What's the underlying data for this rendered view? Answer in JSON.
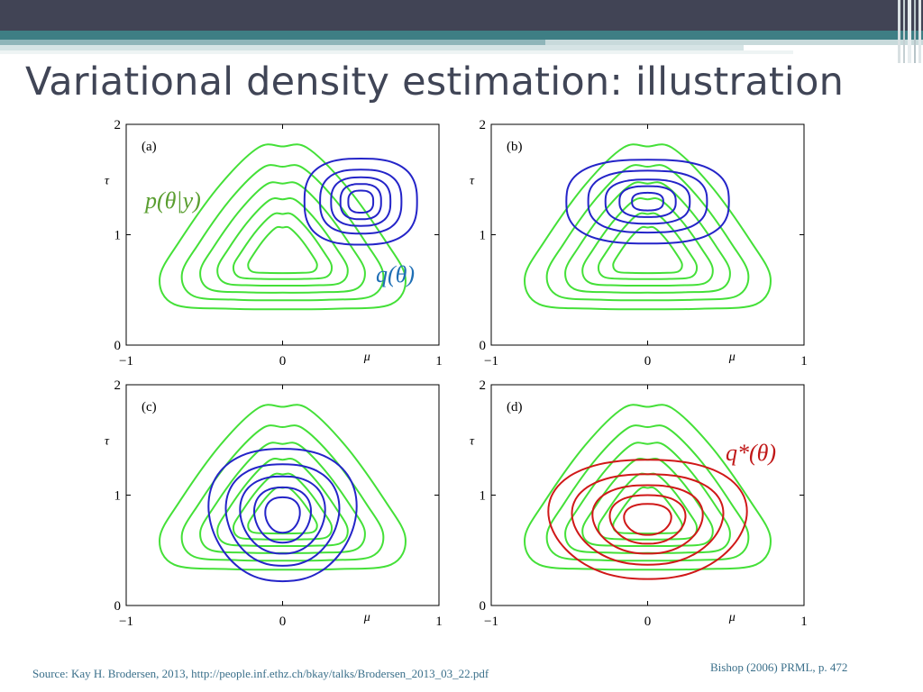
{
  "slide": {
    "title": "Variational density estimation: illustration",
    "source": "Source: Kay H. Brodersen, 2013,  http://people.inf.ethz.ch/bkay/talks/Brodersen_2013_03_22.pdf",
    "citation": "Bishop (2006) PRML, p. 472"
  },
  "colors": {
    "posterior": "#44e038",
    "q_initial": "#2424c8",
    "q_optimal": "#d01818",
    "label_green": "#5a9e30",
    "label_blue": "#1f6fb5",
    "label_red": "#c01818"
  },
  "axes": {
    "xlabel": "μ",
    "ylabel": "τ",
    "xticks": [
      "−1",
      "0",
      "1"
    ],
    "yticks": [
      "0",
      "1",
      "2"
    ],
    "xlim": [
      -1,
      1
    ],
    "ylim": [
      0,
      2
    ]
  },
  "panels": [
    {
      "label": "(a)",
      "annotations": [
        "p(θ|y)",
        "q(θ)"
      ],
      "q_type": "initial"
    },
    {
      "label": "(b)",
      "annotations": [],
      "q_type": "initial"
    },
    {
      "label": "(c)",
      "annotations": [],
      "q_type": "initial"
    },
    {
      "label": "(d)",
      "annotations": [
        "q*(θ)"
      ],
      "q_type": "optimal"
    }
  ]
}
